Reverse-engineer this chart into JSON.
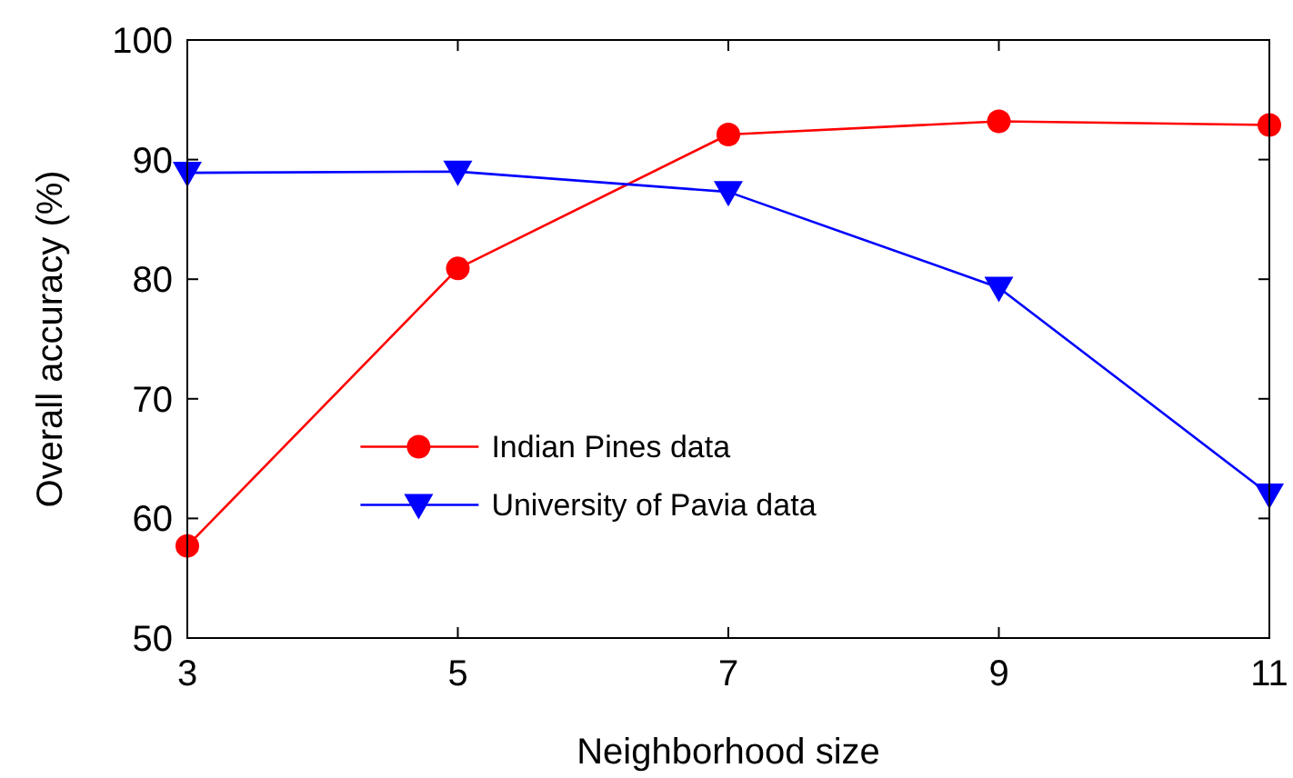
{
  "chart_data": {
    "type": "line",
    "xlabel": "Neighborhood size",
    "ylabel": "Overall accuracy (%)",
    "x": [
      3,
      5,
      7,
      9,
      11
    ],
    "xlim": [
      3,
      11
    ],
    "xticks": [
      3,
      5,
      7,
      9,
      11
    ],
    "ylim": [
      50,
      100
    ],
    "yticks": [
      50,
      60,
      70,
      80,
      90,
      100
    ],
    "legend": "bottom",
    "grid": false,
    "series": [
      {
        "name": "Indian Pines data",
        "color": "#ff0000",
        "marker": "circle",
        "values": [
          57.7,
          80.9,
          92.1,
          93.2,
          92.9
        ]
      },
      {
        "name": "University of Pavia data",
        "color": "#0000ff",
        "marker": "triangle",
        "values": [
          88.9,
          89.0,
          87.3,
          79.3,
          62.0
        ]
      }
    ]
  }
}
